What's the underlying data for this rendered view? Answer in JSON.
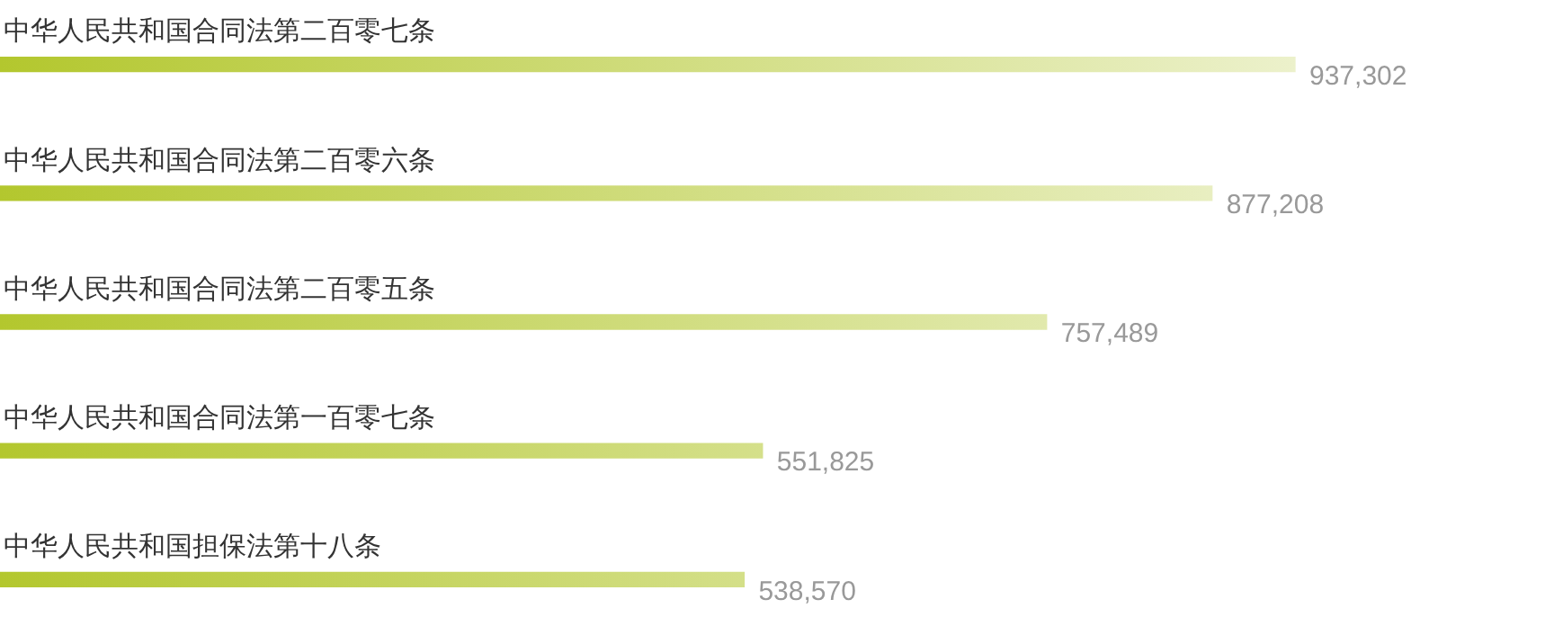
{
  "chart_data": {
    "type": "bar",
    "orientation": "horizontal",
    "categories": [
      "中华人民共和国合同法第二百零七条",
      "中华人民共和国合同法第二百零六条",
      "中华人民共和国合同法第二百零五条",
      "中华人民共和国合同法第一百零七条",
      "中华人民共和国担保法第十八条"
    ],
    "values": [
      937302,
      877208,
      757489,
      551825,
      538570
    ],
    "value_labels": [
      "937,302",
      "877,208",
      "757,489",
      "551,825",
      "538,570"
    ],
    "color": "#b3c72e"
  }
}
